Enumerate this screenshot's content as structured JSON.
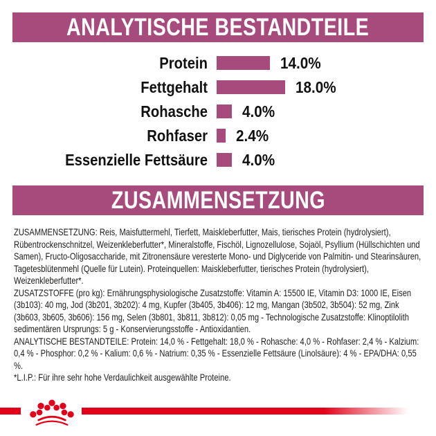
{
  "colors": {
    "accent": "#A74A7C",
    "red": "#E2001A",
    "text_dark": "#1d1d1b"
  },
  "sections": {
    "analytical": {
      "title": "ANALYTISCHE BESTANDTEILE"
    },
    "composition": {
      "title": "ZUSAMMENSETZUNG"
    }
  },
  "chart_data": {
    "type": "bar",
    "orientation": "horizontal",
    "title": "ANALYTISCHE BESTANDTEILE",
    "categories": [
      "Protein",
      "Fettgehalt",
      "Rohasche",
      "Rohfaser",
      "Essenzielle Fettsäure"
    ],
    "values": [
      14.0,
      18.0,
      4.0,
      2.4,
      4.0
    ],
    "value_labels": [
      "14.0%",
      "18.0%",
      "4.0%",
      "2.4%",
      "4.0%"
    ],
    "unit": "%",
    "xlim": [
      0,
      20
    ],
    "bar_color": "#A74A7C",
    "grid": false,
    "legend": false
  },
  "composition_text": {
    "paragraphs": [
      "ZUSAMMENSETZUNG: Reis, Maisfuttermehl, Tierfett, Maiskleberfutter, Mais, tierisches Protein (hydrolysiert), Rübentrockenschnitzel, Weizenkleberfutter*, Mineralstoffe, Fischöl, Lignozellulose, Sojaöl, Psyllium (Hüllschichten und Samen), Fructo-Oligosaccharide, mit Zitronensäure veresterte Mono- und Diglyceride von Palmitin- und Stearinsäuren, Tagetesblütenmehl (Quelle für Lutein). Proteinquellen: Maiskleberfutter, tierisches Protein (hydrolysiert), Weizenkleberfutter*.",
      "ZUSATZSTOFFE (pro kg): Ernährungsphysiologische Zusatzstoffe: Vitamin A: 15500 IE, Vitamin D3: 1000 IE, Eisen (3b103): 40 mg, Jod (3b201, 3b202): 4 mg, Kupfer (3b405, 3b406): 12 mg, Mangan (3b502, 3b504): 52 mg, Zink (3b603, 3b605, 3b606): 156 mg, Selen (3b801, 3b811, 3b812): 0,05 mg - Technologische Zusatzstoffe: Klinoptilolith sedimentären Ursprungs: 5 g - Konservierungsstoffe - Antioxidantien.",
      "ANALYTISCHE BESTANDTEILE: Protein: 14,0 % - Fettgehalt: 18,0 % - Rohasche: 4,0 % - Rohfaser: 2,4 % - Kalzium: 0,4 % - Phosphor: 0,2 % - Kalium: 0,6 % - Natrium: 0,35 % - Essenzielle Fettsäure (Linolsäure): 4 % - EPA/DHA: 0,55 %.",
      "*L.I.P.: Für ihre sehr hohe Verdaulichkeit ausgewählte Proteine."
    ]
  },
  "footer": {
    "logo": "royal-canin-crown"
  }
}
